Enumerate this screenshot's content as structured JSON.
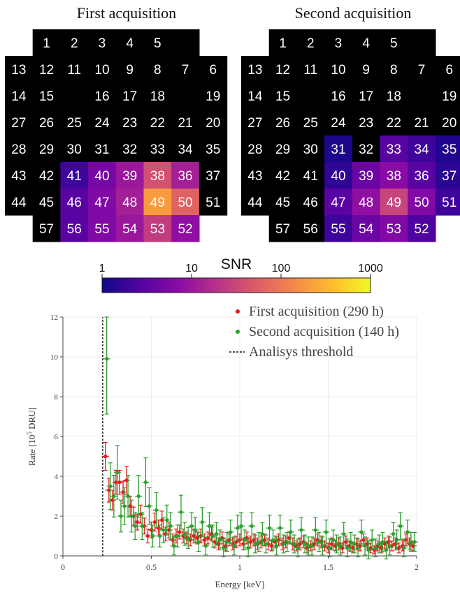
{
  "chart_data": [
    {
      "type": "heatmap",
      "title": "First acquisition",
      "rows": [
        [
          null,
          1,
          2,
          3,
          4,
          5,
          null
        ],
        [
          13,
          12,
          11,
          10,
          9,
          8,
          7,
          6
        ],
        [
          14,
          15,
          null,
          16,
          17,
          18,
          null,
          19
        ],
        [
          27,
          26,
          25,
          24,
          23,
          22,
          21,
          20
        ],
        [
          28,
          29,
          30,
          31,
          32,
          33,
          34,
          35
        ],
        [
          43,
          42,
          41,
          40,
          39,
          38,
          36,
          37
        ],
        [
          44,
          45,
          46,
          47,
          48,
          49,
          50,
          51
        ],
        [
          null,
          57,
          56,
          55,
          54,
          53,
          52,
          null
        ]
      ],
      "snr": {
        "41": 2,
        "40": 5,
        "39": 10,
        "38": 40,
        "36": 12,
        "46": 3,
        "47": 6,
        "48": 12,
        "49": 200,
        "50": 60,
        "56": 3,
        "55": 6,
        "54": 10,
        "53": 25,
        "52": 8
      }
    },
    {
      "type": "heatmap",
      "title": "Second acquisition",
      "rows": [
        [
          null,
          1,
          2,
          3,
          4,
          5,
          null
        ],
        [
          13,
          12,
          11,
          10,
          9,
          8,
          7,
          6
        ],
        [
          14,
          15,
          null,
          16,
          17,
          18,
          null,
          19
        ],
        [
          27,
          26,
          25,
          24,
          23,
          22,
          21,
          20
        ],
        [
          28,
          29,
          30,
          31,
          32,
          33,
          34,
          35
        ],
        [
          43,
          42,
          41,
          40,
          39,
          38,
          36,
          37
        ],
        [
          44,
          45,
          46,
          47,
          48,
          49,
          50,
          51
        ],
        [
          null,
          57,
          56,
          55,
          54,
          53,
          52,
          null
        ]
      ],
      "snr": {
        "31": 1.2,
        "33": 3,
        "34": 2,
        "35": 1.3,
        "40": 1.6,
        "39": 4,
        "38": 7,
        "36": 3,
        "37": 1.5,
        "47": 3,
        "48": 8,
        "49": 30,
        "50": 6,
        "51": 2,
        "55": 2,
        "54": 4,
        "53": 6,
        "52": 2.5
      }
    },
    {
      "type": "colorbar",
      "label": "SNR",
      "scale": "log",
      "range": [
        1,
        1000
      ],
      "ticks": [
        "1",
        "10",
        "100",
        "1000"
      ],
      "colormap": "plasma"
    },
    {
      "type": "scatter",
      "xlabel": "Energy [keV]",
      "ylabel_parts": [
        "Rate [10",
        "5",
        " DRU]"
      ],
      "xlim": [
        0,
        2
      ],
      "ylim": [
        0,
        12
      ],
      "xticks": [
        "0",
        "0.5",
        "1",
        "1.5",
        "2"
      ],
      "yticks": [
        "0",
        "2",
        "4",
        "6",
        "8",
        "10",
        "12"
      ],
      "grid": true,
      "threshold": {
        "label": "Analisys threshold",
        "x": 0.225
      },
      "legend_position": "top-right",
      "series": [
        {
          "name": "First acquisition (290 h)",
          "color": "#e41a1c",
          "x": [
            0.24,
            0.26,
            0.28,
            0.3,
            0.32,
            0.34,
            0.36,
            0.38,
            0.4,
            0.42,
            0.44,
            0.46,
            0.48,
            0.5,
            0.52,
            0.54,
            0.56,
            0.58,
            0.6,
            0.62,
            0.64,
            0.66,
            0.68,
            0.7,
            0.72,
            0.74,
            0.76,
            0.78,
            0.8,
            0.82,
            0.84,
            0.86,
            0.88,
            0.9,
            0.92,
            0.94,
            0.96,
            0.98,
            1.0,
            1.02,
            1.04,
            1.06,
            1.08,
            1.1,
            1.12,
            1.14,
            1.16,
            1.18,
            1.2,
            1.22,
            1.24,
            1.26,
            1.28,
            1.3,
            1.32,
            1.34,
            1.36,
            1.38,
            1.4,
            1.42,
            1.44,
            1.46,
            1.48,
            1.5,
            1.52,
            1.54,
            1.56,
            1.58,
            1.6,
            1.62,
            1.64,
            1.66,
            1.68,
            1.7,
            1.72,
            1.74,
            1.76,
            1.78,
            1.8,
            1.82,
            1.84,
            1.86,
            1.88,
            1.9,
            1.92,
            1.94,
            1.96,
            1.98
          ],
          "y": [
            5.0,
            3.3,
            2.8,
            3.7,
            3.7,
            3.2,
            3.8,
            2.5,
            2.0,
            1.7,
            2.1,
            1.5,
            1.0,
            1.3,
            1.7,
            1.4,
            1.8,
            1.1,
            1.3,
            0.8,
            1.0,
            1.2,
            1.0,
            0.9,
            0.8,
            1.0,
            0.9,
            1.0,
            0.8,
            0.9,
            1.1,
            0.7,
            0.6,
            0.9,
            0.5,
            0.8,
            0.6,
            0.7,
            0.8,
            0.6,
            0.9,
            0.7,
            0.8,
            0.6,
            0.7,
            0.8,
            0.6,
            0.5,
            0.7,
            0.8,
            0.6,
            0.7,
            0.9,
            0.6,
            0.5,
            0.6,
            0.7,
            0.4,
            0.5,
            0.6,
            0.8,
            0.7,
            0.5,
            0.4,
            0.6,
            0.5,
            0.6,
            0.4,
            0.7,
            0.5,
            0.4,
            0.6,
            0.5,
            0.8,
            0.6,
            0.4,
            0.3,
            0.5,
            0.4,
            0.6,
            0.7,
            0.5,
            0.6,
            0.4,
            0.5,
            0.8,
            0.6,
            0.5
          ],
          "err": [
            0.7,
            0.6,
            0.5,
            0.6,
            0.6,
            0.55,
            0.7,
            0.5,
            0.45,
            0.4,
            0.45,
            0.4,
            0.35,
            0.4,
            0.45,
            0.4,
            0.45,
            0.35,
            0.4,
            0.3,
            0.35,
            0.35,
            0.35,
            0.3,
            0.3,
            0.35,
            0.3,
            0.35,
            0.3,
            0.3,
            0.35,
            0.3,
            0.3,
            0.3,
            0.25,
            0.3,
            0.3,
            0.3,
            0.3,
            0.3,
            0.3,
            0.3,
            0.3,
            0.3,
            0.3,
            0.3,
            0.3,
            0.25,
            0.3,
            0.3,
            0.3,
            0.3,
            0.3,
            0.3,
            0.25,
            0.3,
            0.3,
            0.25,
            0.25,
            0.3,
            0.3,
            0.3,
            0.25,
            0.25,
            0.3,
            0.25,
            0.3,
            0.25,
            0.3,
            0.25,
            0.25,
            0.3,
            0.25,
            0.3,
            0.3,
            0.25,
            0.2,
            0.25,
            0.25,
            0.3,
            0.3,
            0.25,
            0.3,
            0.25,
            0.25,
            0.3,
            0.3,
            0.25
          ]
        },
        {
          "name": "Second acquisition (140 h)",
          "color": "#2ca02c",
          "x": [
            0.24,
            0.26,
            0.28,
            0.3,
            0.32,
            0.34,
            0.36,
            0.38,
            0.4,
            0.42,
            0.44,
            0.46,
            0.48,
            0.5,
            0.52,
            0.54,
            0.56,
            0.58,
            0.6,
            0.62,
            0.64,
            0.66,
            0.68,
            0.7,
            0.72,
            0.74,
            0.76,
            0.78,
            0.8,
            0.82,
            0.84,
            0.86,
            0.88,
            0.9,
            0.92,
            0.94,
            0.96,
            0.98,
            1.0,
            1.02,
            1.04,
            1.06,
            1.08,
            1.1,
            1.12,
            1.14,
            1.16,
            1.18,
            1.2,
            1.22,
            1.24,
            1.26,
            1.28,
            1.3,
            1.32,
            1.34,
            1.36,
            1.38,
            1.4,
            1.42,
            1.44,
            1.46,
            1.48,
            1.5,
            1.52,
            1.54,
            1.56,
            1.58,
            1.6,
            1.62,
            1.64,
            1.66,
            1.68,
            1.7,
            1.72,
            1.74,
            1.76,
            1.78,
            1.8,
            1.82,
            1.84,
            1.86,
            1.88,
            1.9,
            1.92,
            1.94,
            1.96,
            1.98
          ],
          "y": [
            9.9,
            3.5,
            3.0,
            4.2,
            2.0,
            2.5,
            3.0,
            2.0,
            1.5,
            3.0,
            1.5,
            3.7,
            2.5,
            1.0,
            2.3,
            1.0,
            1.3,
            1.8,
            1.5,
            0.5,
            1.0,
            2.2,
            1.1,
            0.9,
            1.5,
            1.3,
            0.7,
            1.7,
            0.5,
            1.5,
            1.0,
            1.1,
            0.8,
            0.4,
            0.7,
            1.2,
            0.5,
            1.4,
            1.5,
            0.8,
            0.4,
            1.5,
            0.6,
            0.7,
            1.1,
            0.6,
            1.4,
            0.8,
            0.5,
            1.4,
            0.6,
            0.7,
            1.2,
            0.6,
            0.4,
            1.3,
            0.6,
            0.5,
            0.5,
            1.3,
            0.7,
            0.5,
            1.2,
            0.4,
            0.8,
            0.6,
            0.5,
            1.1,
            0.4,
            0.7,
            0.6,
            0.4,
            1.2,
            0.5,
            0.3,
            0.8,
            0.4,
            0.6,
            0.7,
            0.3,
            0.5,
            1.1,
            0.8,
            1.5,
            0.4,
            1.2,
            0.7,
            0.7
          ]
        }
      ]
    }
  ]
}
